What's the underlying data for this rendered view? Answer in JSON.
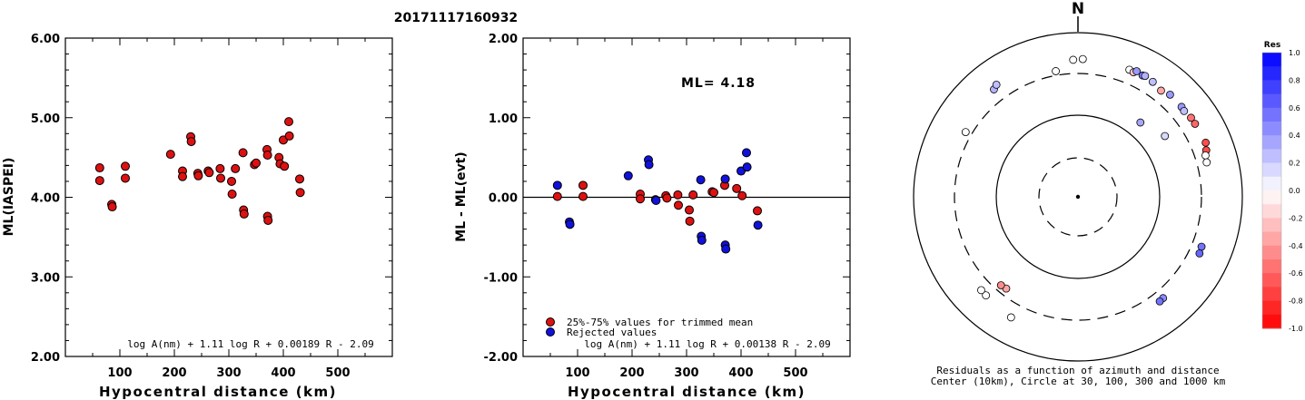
{
  "title": "20171117160932",
  "chart_data": [
    {
      "type": "scatter",
      "ylabel": "ML(IASPEI)",
      "xlabel": "Hypocentral distance (km)",
      "xlim": [
        0,
        600
      ],
      "ylim": [
        2.0,
        6.0
      ],
      "x_ticks": [
        "100",
        "200",
        "300",
        "400",
        "500"
      ],
      "y_ticks": [
        "2.00",
        "3.00",
        "4.00",
        "5.00",
        "6.00"
      ],
      "formula": "log A(nm) + 1.11 log R + 0.00189 R - 2.09",
      "point_color": "#dd1111",
      "points": [
        [
          63,
          4.37
        ],
        [
          63,
          4.21
        ],
        [
          85,
          3.91
        ],
        [
          86,
          3.88
        ],
        [
          110,
          4.39
        ],
        [
          110,
          4.24
        ],
        [
          193,
          4.54
        ],
        [
          215,
          4.33
        ],
        [
          215,
          4.26
        ],
        [
          230,
          4.76
        ],
        [
          231,
          4.7
        ],
        [
          243,
          4.3
        ],
        [
          244,
          4.27
        ],
        [
          262,
          4.33
        ],
        [
          264,
          4.31
        ],
        [
          284,
          4.36
        ],
        [
          285,
          4.24
        ],
        [
          305,
          4.2
        ],
        [
          306,
          4.04
        ],
        [
          312,
          4.36
        ],
        [
          326,
          4.56
        ],
        [
          327,
          3.84
        ],
        [
          328,
          3.79
        ],
        [
          347,
          4.41
        ],
        [
          350,
          4.43
        ],
        [
          370,
          4.6
        ],
        [
          371,
          4.53
        ],
        [
          371,
          3.76
        ],
        [
          372,
          3.71
        ],
        [
          392,
          4.5
        ],
        [
          394,
          4.42
        ],
        [
          400,
          4.72
        ],
        [
          402,
          4.39
        ],
        [
          410,
          4.95
        ],
        [
          411,
          4.77
        ],
        [
          430,
          4.23
        ],
        [
          431,
          4.06
        ]
      ]
    },
    {
      "type": "scatter",
      "ylabel": "ML - ML(evt)",
      "xlabel": "Hypocentral distance (km)",
      "xlim": [
        0,
        600
      ],
      "ylim": [
        -2.0,
        2.0
      ],
      "x_ticks": [
        "100",
        "200",
        "300",
        "400",
        "500"
      ],
      "y_ticks": [
        "-2.00",
        "-1.00",
        "0.00",
        "1.00",
        "2.00"
      ],
      "annotation": "ML= 4.18",
      "formula": "log A(nm) + 1.11 log R + 0.00138 R - 2.09",
      "legend": [
        {
          "label": "25%-75% values for trimmed mean",
          "color": "#dd1111"
        },
        {
          "label": "Rejected values",
          "color": "#1111dd"
        }
      ],
      "series": [
        {
          "name": "25%-75% values for trimmed mean",
          "color": "#dd1111",
          "points": [
            [
              63,
              0.01
            ],
            [
              110,
              0.01
            ],
            [
              110,
              0.15
            ],
            [
              215,
              0.04
            ],
            [
              215,
              -0.02
            ],
            [
              243,
              -0.03
            ],
            [
              262,
              0.02
            ],
            [
              264,
              -0.01
            ],
            [
              284,
              0.03
            ],
            [
              285,
              -0.1
            ],
            [
              305,
              -0.16
            ],
            [
              306,
              -0.3
            ],
            [
              312,
              0.03
            ],
            [
              347,
              0.07
            ],
            [
              350,
              0.06
            ],
            [
              370,
              0.15
            ],
            [
              392,
              0.11
            ],
            [
              402,
              0.02
            ],
            [
              430,
              -0.17
            ]
          ]
        },
        {
          "name": "Rejected values",
          "color": "#1111dd",
          "points": [
            [
              63,
              0.15
            ],
            [
              85,
              -0.31
            ],
            [
              86,
              -0.34
            ],
            [
              193,
              0.27
            ],
            [
              230,
              0.47
            ],
            [
              231,
              0.41
            ],
            [
              244,
              -0.04
            ],
            [
              326,
              0.22
            ],
            [
              327,
              -0.49
            ],
            [
              328,
              -0.54
            ],
            [
              371,
              0.23
            ],
            [
              371,
              -0.6
            ],
            [
              372,
              -0.65
            ],
            [
              400,
              0.33
            ],
            [
              410,
              0.56
            ],
            [
              411,
              0.38
            ],
            [
              431,
              -0.35
            ]
          ]
        }
      ]
    },
    {
      "type": "polar",
      "top_label": "N",
      "caption": [
        "Residuals as a function of azimuth and distance",
        "Center (10km), Circle at 30, 100, 300 and 1000 km"
      ],
      "rings_km": [
        30,
        100,
        300,
        1000
      ],
      "colorbar": {
        "title": "Res",
        "ticks": [
          "1.0",
          "0.8",
          "0.6",
          "0.4",
          "0.2",
          "0.0",
          "-0.2",
          "-0.4",
          "-0.6",
          "-0.8",
          "-1.0"
        ]
      },
      "points": [
        {
          "azimuth": 300,
          "distance_km": 360,
          "residual": 0.0
        },
        {
          "azimuth": 322,
          "distance_km": 440,
          "residual": 0.3
        },
        {
          "azimuth": 324,
          "distance_km": 470,
          "residual": 0.25
        },
        {
          "azimuth": 350,
          "distance_km": 340,
          "residual": 0.0
        },
        {
          "azimuth": 358,
          "distance_km": 450,
          "residual": 0.0
        },
        {
          "azimuth": 2,
          "distance_km": 460,
          "residual": 0.0
        },
        {
          "azimuth": 22,
          "distance_km": 450,
          "residual": 0.0
        },
        {
          "azimuth": 24,
          "distance_km": 440,
          "residual": -0.2
        },
        {
          "azimuth": 25,
          "distance_km": 470,
          "residual": 0.4
        },
        {
          "azimuth": 28,
          "distance_km": 455,
          "residual": 0.5
        },
        {
          "azimuth": 29,
          "distance_km": 465,
          "residual": 0.3
        },
        {
          "azimuth": 33,
          "distance_km": 450,
          "residual": 0.25
        },
        {
          "azimuth": 38,
          "distance_km": 420,
          "residual": -0.35
        },
        {
          "azimuth": 42,
          "distance_km": 455,
          "residual": 0.4
        },
        {
          "azimuth": 49,
          "distance_km": 450,
          "residual": 0.4
        },
        {
          "azimuth": 51,
          "distance_km": 440,
          "residual": 0.25
        },
        {
          "azimuth": 55,
          "distance_km": 460,
          "residual": -0.55
        },
        {
          "azimuth": 58,
          "distance_km": 460,
          "residual": -0.6
        },
        {
          "azimuth": 67,
          "distance_km": 470,
          "residual": -0.7
        },
        {
          "azimuth": 70,
          "distance_km": 440,
          "residual": -0.7
        },
        {
          "azimuth": 72,
          "distance_km": 410,
          "residual": 0.0
        },
        {
          "azimuth": 75,
          "distance_km": 400,
          "residual": 0.0
        },
        {
          "azimuth": 40,
          "distance_km": 150,
          "residual": 0.35
        },
        {
          "azimuth": 55,
          "distance_km": 190,
          "residual": 0.15
        },
        {
          "azimuth": 112,
          "distance_km": 400,
          "residual": 0.55
        },
        {
          "azimuth": 115,
          "distance_km": 410,
          "residual": 0.6
        },
        {
          "azimuth": 140,
          "distance_km": 390,
          "residual": 0.45
        },
        {
          "azimuth": 142,
          "distance_km": 395,
          "residual": 0.55
        },
        {
          "azimuth": 218,
          "distance_km": 250,
          "residual": -0.35
        },
        {
          "azimuth": 221,
          "distance_km": 255,
          "residual": -0.45
        },
        {
          "azimuth": 223,
          "distance_km": 420,
          "residual": 0.0
        },
        {
          "azimuth": 226,
          "distance_km": 415,
          "residual": 0.0
        },
        {
          "azimuth": 209,
          "distance_km": 460,
          "residual": 0.0
        }
      ]
    }
  ]
}
